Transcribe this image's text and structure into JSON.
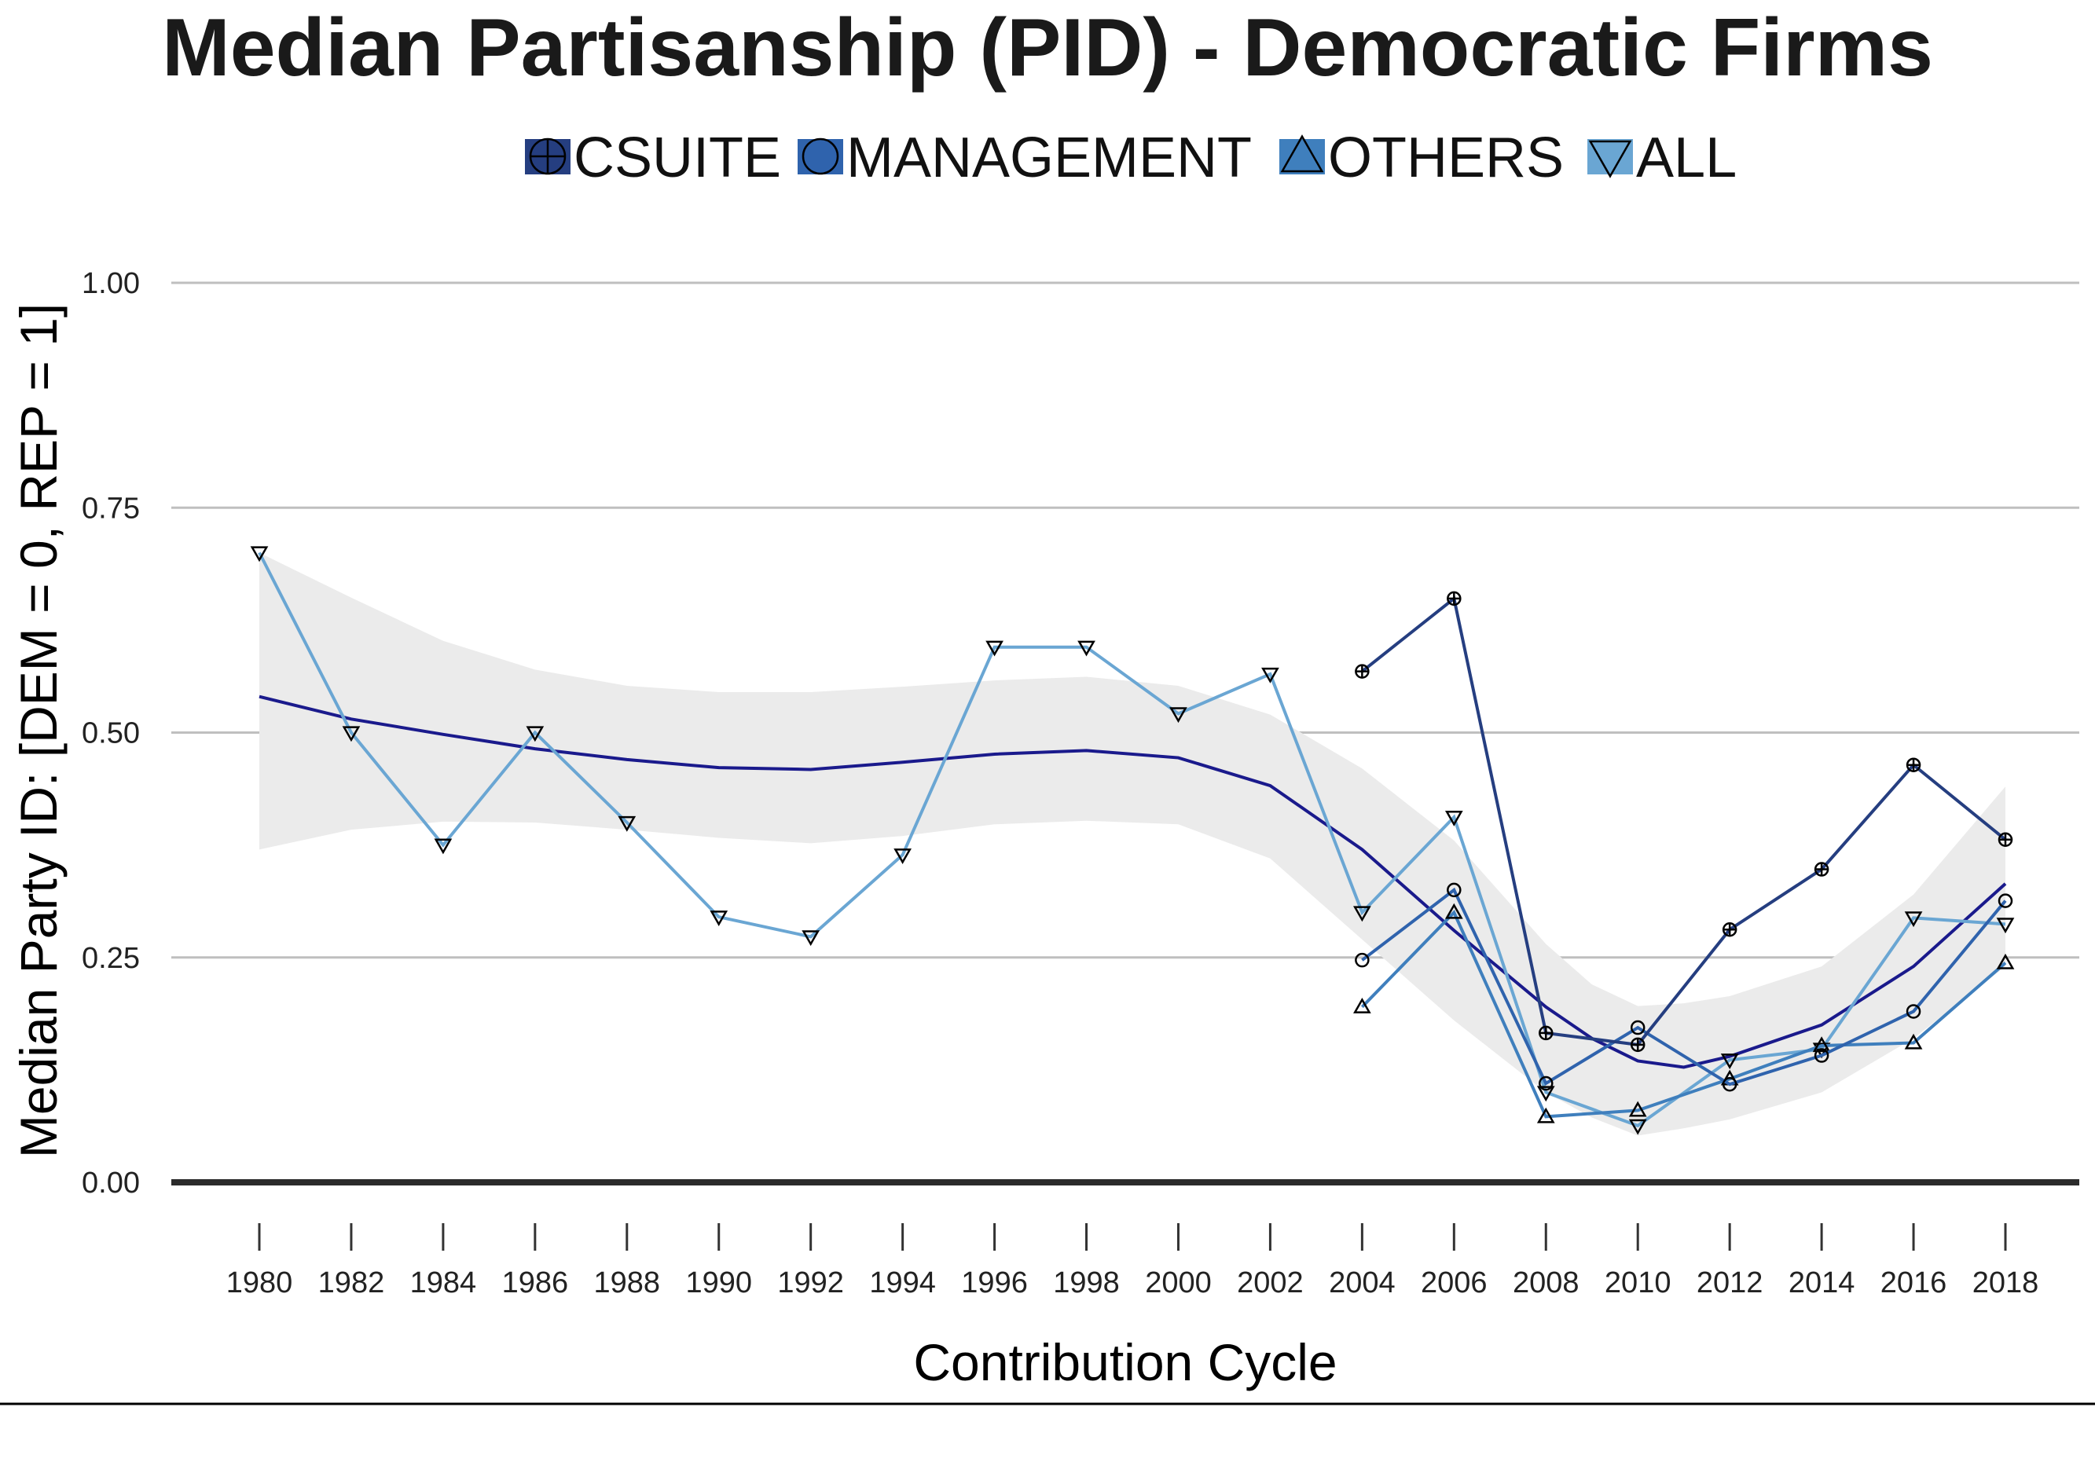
{
  "chart_data": {
    "type": "line",
    "title": "Median Partisanship (PID) - Democratic Firms",
    "xlabel": "Contribution Cycle",
    "ylabel": "Median Party ID: [DEM = 0, REP = 1]",
    "xlim": [
      1980,
      2018
    ],
    "ylim": [
      0,
      1
    ],
    "x_ticks": [
      "1980",
      "1982",
      "1984",
      "1986",
      "1988",
      "1990",
      "1992",
      "1994",
      "1996",
      "1998",
      "2000",
      "2002",
      "2004",
      "2006",
      "2008",
      "2010",
      "2012",
      "2014",
      "2016",
      "2018"
    ],
    "y_ticks": [
      "0.00",
      "0.25",
      "0.50",
      "0.75",
      "1.00"
    ],
    "grid": true,
    "legend_position": "top",
    "series": [
      {
        "name": "CSUITE",
        "color": "#253e80",
        "marker": "circle-plus",
        "points": [
          [
            2004,
            0.568
          ],
          [
            2006,
            0.649
          ],
          [
            2008,
            0.166
          ],
          [
            2010,
            0.153
          ],
          [
            2012,
            0.281
          ],
          [
            2014,
            0.348
          ],
          [
            2016,
            0.464
          ],
          [
            2018,
            0.381
          ]
        ]
      },
      {
        "name": "MANAGEMENT",
        "color": "#2f63ad",
        "marker": "circle",
        "points": [
          [
            2004,
            0.247
          ],
          [
            2006,
            0.325
          ],
          [
            2008,
            0.11
          ],
          [
            2010,
            0.172
          ],
          [
            2012,
            0.109
          ],
          [
            2014,
            0.141
          ],
          [
            2016,
            0.19
          ],
          [
            2018,
            0.313
          ]
        ]
      },
      {
        "name": "OTHERS",
        "color": "#3f7fbd",
        "marker": "triangle-up",
        "points": [
          [
            2004,
            0.195
          ],
          [
            2006,
            0.3
          ],
          [
            2008,
            0.073
          ],
          [
            2010,
            0.08
          ],
          [
            2012,
            0.115
          ],
          [
            2014,
            0.152
          ],
          [
            2016,
            0.155
          ],
          [
            2018,
            0.244
          ]
        ]
      },
      {
        "name": "ALL",
        "color": "#6aa6d3",
        "marker": "triangle-down",
        "points": [
          [
            1980,
            0.7
          ],
          [
            1982,
            0.5
          ],
          [
            1984,
            0.375
          ],
          [
            1986,
            0.5
          ],
          [
            1988,
            0.4
          ],
          [
            1990,
            0.295
          ],
          [
            1992,
            0.273
          ],
          [
            1994,
            0.364
          ],
          [
            1996,
            0.595
          ],
          [
            1998,
            0.595
          ],
          [
            2000,
            0.521
          ],
          [
            2002,
            0.565
          ],
          [
            2004,
            0.3
          ],
          [
            2006,
            0.406
          ],
          [
            2008,
            0.1
          ],
          [
            2010,
            0.063
          ],
          [
            2012,
            0.136
          ],
          [
            2014,
            0.148
          ],
          [
            2016,
            0.294
          ],
          [
            2018,
            0.287
          ]
        ]
      }
    ],
    "smooth": {
      "color": "#1a1a8c",
      "band_color": "#ebebeb",
      "x": [
        1980,
        1982,
        1984,
        1986,
        1988,
        1990,
        1992,
        1994,
        1996,
        1998,
        2000,
        2002,
        2004,
        2006,
        2008,
        2009,
        2010,
        2011,
        2012,
        2014,
        2016,
        2018
      ],
      "y": [
        0.54,
        0.515,
        0.498,
        0.482,
        0.47,
        0.461,
        0.459,
        0.467,
        0.476,
        0.48,
        0.472,
        0.441,
        0.37,
        0.28,
        0.195,
        0.16,
        0.135,
        0.128,
        0.14,
        0.175,
        0.24,
        0.332
      ],
      "lower": [
        0.37,
        0.392,
        0.401,
        0.4,
        0.392,
        0.383,
        0.377,
        0.385,
        0.398,
        0.402,
        0.398,
        0.36,
        0.27,
        0.18,
        0.1,
        0.072,
        0.052,
        0.06,
        0.07,
        0.1,
        0.16,
        0.24
      ],
      "upper": [
        0.7,
        0.65,
        0.602,
        0.57,
        0.552,
        0.545,
        0.545,
        0.551,
        0.558,
        0.562,
        0.552,
        0.52,
        0.46,
        0.38,
        0.265,
        0.22,
        0.196,
        0.199,
        0.207,
        0.24,
        0.32,
        0.44
      ]
    }
  }
}
